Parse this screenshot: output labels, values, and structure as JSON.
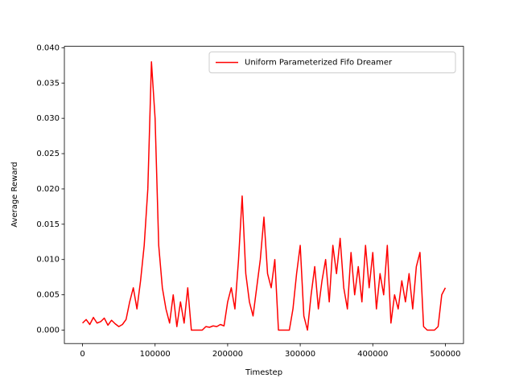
{
  "chart_data": {
    "type": "line",
    "xlabel": "Timestep",
    "ylabel": "Average Reward",
    "x": [
      0,
      5000,
      10000,
      15000,
      20000,
      25000,
      30000,
      35000,
      40000,
      45000,
      50000,
      55000,
      60000,
      65000,
      70000,
      75000,
      80000,
      85000,
      90000,
      95000,
      100000,
      105000,
      110000,
      115000,
      120000,
      125000,
      130000,
      135000,
      140000,
      145000,
      150000,
      155000,
      160000,
      165000,
      170000,
      175000,
      180000,
      185000,
      190000,
      195000,
      200000,
      205000,
      210000,
      215000,
      220000,
      225000,
      230000,
      235000,
      240000,
      245000,
      250000,
      255000,
      260000,
      265000,
      270000,
      275000,
      280000,
      285000,
      290000,
      295000,
      300000,
      305000,
      310000,
      315000,
      320000,
      325000,
      330000,
      335000,
      340000,
      345000,
      350000,
      355000,
      360000,
      365000,
      370000,
      375000,
      380000,
      385000,
      390000,
      395000,
      400000,
      405000,
      410000,
      415000,
      420000,
      425000,
      430000,
      435000,
      440000,
      445000,
      450000,
      455000,
      460000,
      465000,
      470000,
      475000,
      480000,
      485000,
      490000,
      495000,
      500000
    ],
    "series": [
      {
        "name": "Uniform Parameterized Fifo Dreamer",
        "color": "#ff0000",
        "values": [
          0.001,
          0.0015,
          0.0008,
          0.0018,
          0.001,
          0.0012,
          0.0017,
          0.0007,
          0.0014,
          0.0009,
          0.0005,
          0.0008,
          0.0015,
          0.004,
          0.006,
          0.003,
          0.007,
          0.012,
          0.02,
          0.038,
          0.03,
          0.012,
          0.006,
          0.003,
          0.001,
          0.005,
          0.0005,
          0.004,
          0.001,
          0.006,
          0,
          0,
          0,
          0,
          0.0005,
          0.0004,
          0.0006,
          0.0005,
          0.0008,
          0.0006,
          0.004,
          0.006,
          0.003,
          0.01,
          0.019,
          0.008,
          0.004,
          0.002,
          0.006,
          0.01,
          0.016,
          0.008,
          0.006,
          0.01,
          0,
          0,
          0,
          0,
          0.003,
          0.008,
          0.012,
          0.002,
          0,
          0.005,
          0.009,
          0.003,
          0.007,
          0.01,
          0.004,
          0.012,
          0.008,
          0.013,
          0.006,
          0.003,
          0.011,
          0.005,
          0.009,
          0.004,
          0.012,
          0.006,
          0.011,
          0.003,
          0.008,
          0.005,
          0.012,
          0.001,
          0.005,
          0.003,
          0.007,
          0.004,
          0.008,
          0.003,
          0.009,
          0.011,
          0.0005,
          0,
          0,
          0,
          0.0005,
          0.005,
          0.006
        ]
      }
    ],
    "xlim": [
      -25000,
      525000
    ],
    "ylim": [
      -0.0019,
      0.0402
    ],
    "xticks": [
      0,
      100000,
      200000,
      300000,
      400000,
      500000
    ],
    "yticks": [
      {
        "value": 0,
        "label": "0.000"
      },
      {
        "value": 0.005,
        "label": "0.005"
      },
      {
        "value": 0.01,
        "label": "0.010"
      },
      {
        "value": 0.015,
        "label": "0.015"
      },
      {
        "value": 0.02,
        "label": "0.020"
      },
      {
        "value": 0.025,
        "label": "0.025"
      },
      {
        "value": 0.03,
        "label": "0.030"
      },
      {
        "value": 0.035,
        "label": "0.035"
      },
      {
        "value": 0.04,
        "label": "0.040"
      }
    ],
    "grid": false,
    "legend": "upper right"
  }
}
